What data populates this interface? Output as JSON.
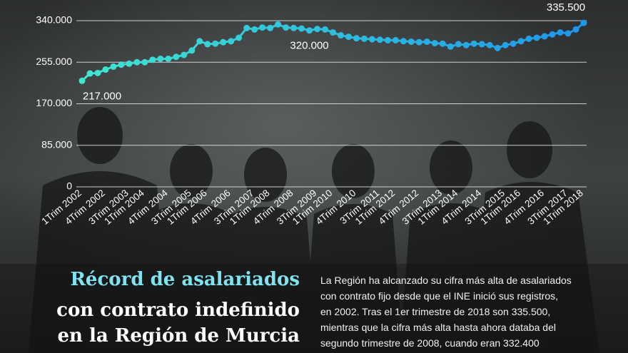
{
  "chart_data": {
    "type": "line",
    "categories": [
      "1Trim 2002",
      null,
      null,
      "4Trim 2002",
      null,
      null,
      "3Trim 2003",
      null,
      "1Trim 2004",
      null,
      null,
      "4Trim 2004",
      null,
      null,
      "3Trim 2005",
      null,
      "1Trim 2006",
      null,
      null,
      "4Trim 2006",
      null,
      null,
      "3Trim 2007",
      null,
      "1Trim 2008",
      null,
      null,
      "4Trim 2008",
      null,
      null,
      "3Trim 2009",
      null,
      "1Trim 2010",
      null,
      null,
      "4Trim 2010",
      null,
      null,
      "3Trim 2011",
      null,
      "1Trim 2012",
      null,
      null,
      "4Trim 2012",
      null,
      null,
      "3Trim 2013",
      null,
      "1Trim 2014",
      null,
      null,
      "4Trim 2014",
      null,
      null,
      "3Trim 2015",
      null,
      "1Trim 2016",
      null,
      null,
      "4Trim 2016",
      null,
      null,
      "3Trim 2017",
      null,
      "1Trim 2018"
    ],
    "series": [
      {
        "colors": [
          "#3fe6cf",
          "#1e96ec"
        ],
        "values": [
          217000,
          232000,
          233000,
          240000,
          246000,
          250000,
          252000,
          255000,
          255000,
          260000,
          262000,
          262000,
          266000,
          270000,
          279000,
          298000,
          292000,
          293000,
          296000,
          298000,
          305000,
          325000,
          322000,
          326000,
          325000,
          332400,
          326000,
          325000,
          324000,
          320000,
          323000,
          322000,
          316000,
          310000,
          307000,
          304000,
          303000,
          302000,
          301000,
          300000,
          300000,
          298000,
          297000,
          296000,
          297000,
          294000,
          293000,
          287000,
          292000,
          290000,
          293000,
          292000,
          290000,
          284000,
          290000,
          293000,
          298000,
          303000,
          305000,
          308000,
          312000,
          316000,
          314000,
          322000,
          335500
        ],
        "value_labels": [
          "217.000",
          null,
          null,
          null,
          null,
          null,
          null,
          null,
          null,
          null,
          null,
          null,
          null,
          null,
          null,
          null,
          null,
          null,
          null,
          null,
          null,
          null,
          null,
          null,
          null,
          null,
          null,
          null,
          null,
          "320.000",
          null,
          null,
          null,
          null,
          null,
          null,
          null,
          null,
          null,
          null,
          null,
          null,
          null,
          null,
          null,
          null,
          null,
          null,
          null,
          null,
          null,
          null,
          null,
          null,
          null,
          null,
          null,
          null,
          null,
          null,
          null,
          null,
          null,
          null,
          "335.500"
        ]
      }
    ],
    "ylim": [
      0,
      340000
    ],
    "yticks": [
      0,
      {
        "value": 85000,
        "label": "85.000"
      },
      {
        "value": 170000,
        "label": "170.000"
      },
      {
        "value": 255000,
        "label": "255.000"
      },
      {
        "value": 340000,
        "label": "340.000"
      }
    ],
    "grid": true,
    "title": [
      "Récord de asalariados",
      "con contrato indefinido",
      "en la Región de Murcia"
    ],
    "text": [
      "La Región ha alcanzado su cifra más alta de asalariados",
      "con contrato fijo desde que el INE inició sus registros,",
      "en 2002. Tras el 1er trimestre de 2018 son 335.500,",
      "mientras que la cifra más alta hasta ahora databa del",
      "segundo trimestre de 2008, cuando eran 332.400"
    ]
  }
}
